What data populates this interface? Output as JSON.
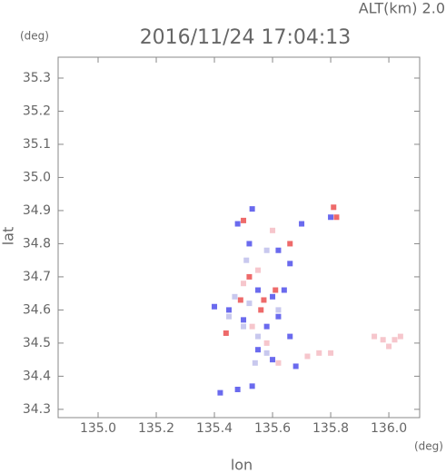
{
  "chart_data": {
    "type": "scatter",
    "title": "2016/11/24 17:04:13",
    "annotation": "ALT(km)  2.0",
    "x_label": "lon",
    "y_label": "lat",
    "x_unit": "(deg)",
    "y_unit": "(deg)",
    "xlim": [
      134.8625,
      136.106
    ],
    "ylim": [
      34.275,
      35.363
    ],
    "xticks": [
      {
        "value": 135.0,
        "label": "135.0"
      },
      135.2,
      135.4,
      135.6,
      135.8,
      {
        "value": 136.0,
        "label": "136.0"
      }
    ],
    "yticks": [
      34.3,
      34.4,
      34.5,
      34.6,
      34.7,
      34.8,
      34.9,
      {
        "value": 35.0,
        "label": "35.0"
      },
      35.1,
      35.2,
      35.3
    ],
    "series": [
      {
        "color": "#6a6aee",
        "x": [
          135.53,
          135.48,
          135.52,
          135.62,
          135.7,
          135.55,
          135.6,
          135.64,
          135.45,
          135.5,
          135.58,
          135.62,
          135.66,
          135.55,
          135.6,
          135.68,
          135.42,
          135.48,
          135.53,
          135.8,
          135.66,
          135.4
        ],
        "values": [
          34.905,
          34.86,
          34.8,
          34.78,
          34.86,
          34.66,
          34.64,
          34.66,
          34.6,
          34.57,
          34.55,
          34.58,
          34.52,
          34.48,
          34.45,
          34.43,
          34.35,
          34.36,
          34.37,
          34.88,
          34.74,
          34.61
        ]
      },
      {
        "color": "#ee6a6a",
        "x": [
          135.81,
          135.82,
          135.5,
          135.52,
          135.57,
          135.61,
          135.49,
          135.44,
          135.66,
          135.56
        ],
        "values": [
          34.91,
          34.88,
          34.87,
          34.7,
          34.63,
          34.66,
          34.63,
          34.53,
          34.8,
          34.6
        ]
      },
      {
        "color": "#f6c6cc",
        "x": [
          135.95,
          135.98,
          136.02,
          136.04,
          136.0,
          135.72,
          135.76,
          135.8,
          135.53,
          135.58,
          135.62,
          135.5,
          135.55,
          135.6
        ],
        "values": [
          34.52,
          34.51,
          34.51,
          34.52,
          34.49,
          34.46,
          34.47,
          34.47,
          34.55,
          34.5,
          34.44,
          34.68,
          34.72,
          34.84
        ]
      },
      {
        "color": "#c8c8ee",
        "x": [
          135.45,
          135.5,
          135.55,
          135.52,
          135.47,
          135.58,
          135.54,
          135.62,
          135.58,
          135.51
        ],
        "values": [
          34.58,
          34.55,
          34.52,
          34.62,
          34.64,
          34.47,
          34.44,
          34.6,
          34.78,
          34.75
        ]
      }
    ]
  }
}
